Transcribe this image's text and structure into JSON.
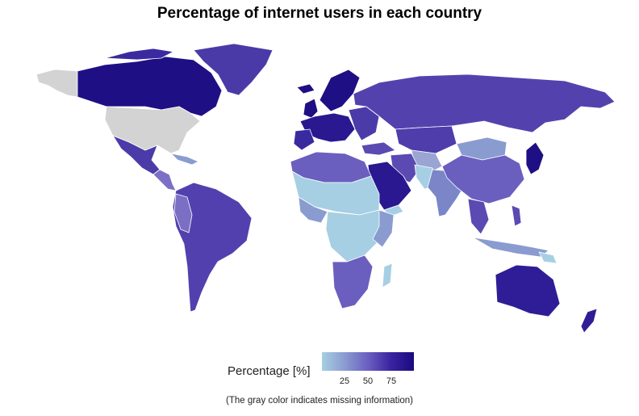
{
  "title": "Percentage of internet users in each country",
  "legend": {
    "title": "Percentage [%]",
    "ticks": [
      "25",
      "50",
      "75"
    ],
    "gradient_colors": [
      "#a6cfe4",
      "#8a9bd0",
      "#6a5fbf",
      "#3a23a0",
      "#1a0a80"
    ],
    "missing_color": "#d3d3d3"
  },
  "note": "(The gray color indicates missing information)"
}
